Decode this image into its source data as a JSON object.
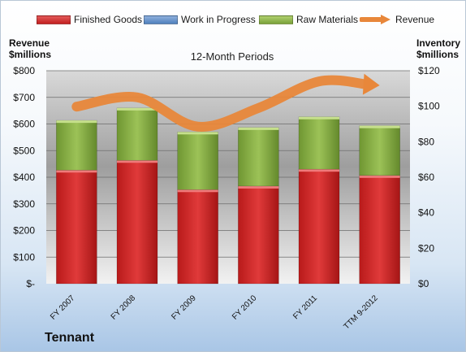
{
  "chart_data": {
    "type": "bar",
    "title": "12-Month Periods",
    "ylabel_left": [
      "Revenue",
      "$millions"
    ],
    "ylabel_right": [
      "Inventory",
      "$millions"
    ],
    "categories": [
      "FY 2007",
      "FY 2008",
      "FY 2009",
      "FY 2010",
      "FY 2011",
      "TTM 9-2012"
    ],
    "left_axis": {
      "range": [
        0,
        800
      ],
      "ticks": [
        0,
        100,
        200,
        300,
        400,
        500,
        600,
        700,
        800
      ],
      "tick_labels": [
        "$-",
        "$100",
        "$200",
        "$300",
        "$400",
        "$500",
        "$600",
        "$700",
        "$800"
      ]
    },
    "right_axis": {
      "range": [
        0,
        120
      ],
      "ticks": [
        0,
        20,
        40,
        60,
        80,
        100,
        120
      ],
      "tick_labels": [
        "$0",
        "$20",
        "$40",
        "$60",
        "$80",
        "$100",
        "$120"
      ]
    },
    "stacked": true,
    "grid": true,
    "legend_position": "top",
    "series": [
      {
        "name": "Finished Goods",
        "axis": "right",
        "color": "#d42a2a",
        "values": [
          64,
          69.5,
          53,
          55,
          64.5,
          61
        ]
      },
      {
        "name": "Work in Progress",
        "axis": "right",
        "color": "#4f81bd",
        "values": [
          0,
          0,
          0,
          0,
          0,
          0
        ]
      },
      {
        "name": "Raw Materials",
        "axis": "right",
        "color": "#8fb445",
        "values": [
          28,
          29.5,
          32.5,
          33,
          29.5,
          28
        ]
      },
      {
        "name": "Revenue",
        "axis": "left",
        "type": "line",
        "color": "#e8873a",
        "values": [
          665,
          700,
          590,
          660,
          760,
          745
        ]
      }
    ]
  },
  "brand": "Tennant"
}
